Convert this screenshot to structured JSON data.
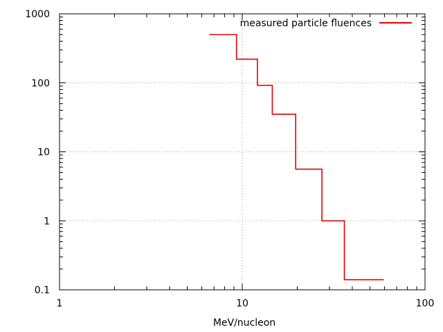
{
  "chart_data": {
    "type": "line",
    "style": "step",
    "title": "",
    "xlabel": "MeV/nucleon",
    "ylabel": "",
    "xscale": "log",
    "yscale": "log",
    "xlim": [
      1,
      100
    ],
    "ylim": [
      0.1,
      1000
    ],
    "grid": true,
    "legend_position": "top-right",
    "x_ticks": [
      {
        "value": 1,
        "label": "1"
      },
      {
        "value": 10,
        "label": "10"
      },
      {
        "value": 100,
        "label": "100"
      }
    ],
    "y_ticks": [
      {
        "value": 0.1,
        "label": "0.1"
      },
      {
        "value": 1,
        "label": "1"
      },
      {
        "value": 10,
        "label": "10"
      },
      {
        "value": 100,
        "label": "100"
      },
      {
        "value": 1000,
        "label": "1000"
      }
    ],
    "series": [
      {
        "name": "measured particle fluences",
        "color": "#e00000",
        "bins": [
          {
            "x0": 6.6,
            "x1": 9.3,
            "y": 500
          },
          {
            "x0": 9.3,
            "x1": 12.1,
            "y": 220
          },
          {
            "x0": 12.1,
            "x1": 14.6,
            "y": 92
          },
          {
            "x0": 14.6,
            "x1": 19.6,
            "y": 35
          },
          {
            "x0": 19.6,
            "x1": 27.3,
            "y": 5.6
          },
          {
            "x0": 27.3,
            "x1": 36.2,
            "y": 1.0
          },
          {
            "x0": 36.2,
            "x1": 59.5,
            "y": 0.14
          }
        ]
      }
    ]
  }
}
